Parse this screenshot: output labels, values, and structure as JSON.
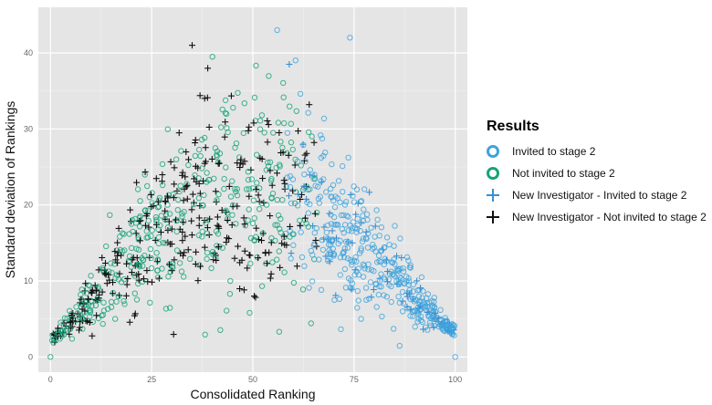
{
  "chart_data": {
    "type": "scatter",
    "title": "",
    "xlabel": "Consolidated Ranking",
    "ylabel": "Standard deviation of Rankings",
    "xlim": [
      -3,
      103
    ],
    "ylim": [
      -2,
      46
    ],
    "xticks": [
      0,
      25,
      50,
      75,
      100
    ],
    "yticks": [
      0,
      10,
      20,
      30,
      40
    ],
    "grid": true,
    "legend_position": "right",
    "legend_title": "Results",
    "series": [
      {
        "name": "Invited to stage 2",
        "marker": "circle",
        "color": "#3fa2dc"
      },
      {
        "name": "Not invited to stage 2",
        "marker": "circle",
        "color": "#16a37a"
      },
      {
        "name": "New Investigator - Invited to stage 2",
        "marker": "plus",
        "color": "#3a8fd4"
      },
      {
        "name": "New Investigator - Not invited to stage 2",
        "marker": "plus",
        "color": "#111111"
      }
    ],
    "notable_points": [
      {
        "series": "Not invited to stage 2",
        "x": 0,
        "y": 0
      },
      {
        "series": "Invited to stage 2",
        "x": 100,
        "y": 0
      },
      {
        "series": "New Investigator - Not invited to stage 2",
        "x": 35,
        "y": 41
      },
      {
        "series": "Not invited to stage 2",
        "x": 40,
        "y": 39.5
      },
      {
        "series": "Invited to stage 2",
        "x": 56,
        "y": 43
      },
      {
        "series": "Invited to stage 2",
        "x": 74,
        "y": 42
      },
      {
        "series": "New Investigator - Invited to stage 2",
        "x": 59,
        "y": 38.5
      }
    ],
    "envelope_note": "Points cluster in an inverted-U: low SD near rankings 0 and 100, peaking around 30-45 near rankings 35-60. Ranks below ~60 are mostly not invited (green circles / black plus); ranks above ~60 are mostly invited (blue circles / blue plus)."
  }
}
